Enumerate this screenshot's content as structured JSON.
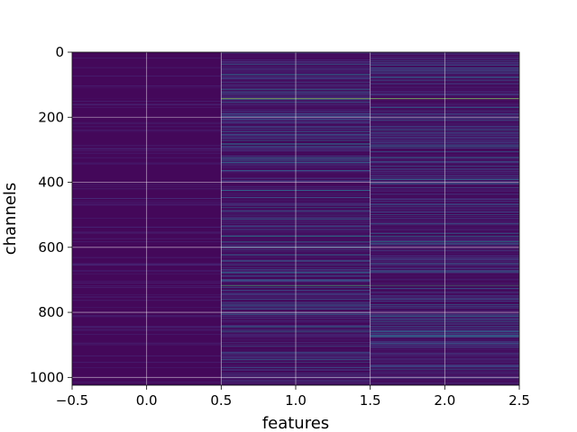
{
  "chart_data": {
    "type": "heatmap",
    "title": "",
    "xlabel": "features",
    "ylabel": "channels",
    "xlim": [
      -0.5,
      2.5
    ],
    "ylim": [
      1024,
      0
    ],
    "y_inverted": true,
    "columns": [
      0,
      1,
      2
    ],
    "n_channels": 1024,
    "grid": true,
    "colormap": "viridis",
    "xticks": [
      -0.5,
      0.0,
      0.5,
      1.0,
      1.5,
      2.0,
      2.5
    ],
    "xtick_labels": [
      "−0.5",
      "0.0",
      "0.5",
      "1.0",
      "1.5",
      "2.0",
      "2.5"
    ],
    "yticks": [
      0,
      200,
      400,
      600,
      800,
      1000
    ],
    "ytick_labels": [
      "0",
      "200",
      "400",
      "600",
      "800",
      "1000"
    ],
    "highlight_rows": [
      {
        "channel": 143,
        "col0": 0.05,
        "col1": 0.85,
        "col2": 0.85
      },
      {
        "channel": 290,
        "col0": 0.03,
        "col1": 0.4,
        "col2": 0.4
      },
      {
        "channel": 325,
        "col0": 0.05,
        "col1": 0.45,
        "col2": 0.45
      },
      {
        "channel": 566,
        "col0": 0.03,
        "col1": 0.45,
        "col2": 0.45
      },
      {
        "channel": 582,
        "col0": 0.04,
        "col1": 0.5,
        "col2": 0.5
      },
      {
        "channel": 677,
        "col0": 0.03,
        "col1": 0.4,
        "col2": 0.4
      },
      {
        "channel": 717,
        "col0": 0.05,
        "col1": 0.7,
        "col2": 0.7
      },
      {
        "channel": 860,
        "col0": 0.04,
        "col1": 0.4,
        "col2": 0.4
      }
    ]
  }
}
